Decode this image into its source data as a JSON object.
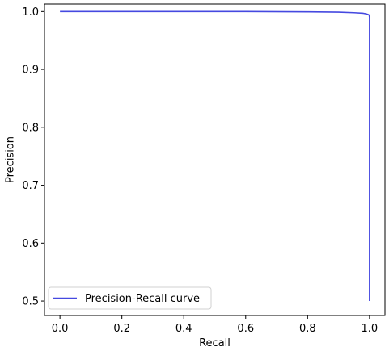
{
  "chart_data": {
    "type": "line",
    "title": "",
    "xlabel": "Recall",
    "ylabel": "Precision",
    "xlim": [
      -0.05,
      1.05
    ],
    "ylim": [
      0.475,
      1.013
    ],
    "xticks": [
      0.0,
      0.2,
      0.4,
      0.6,
      0.8,
      1.0
    ],
    "xtick_labels": [
      "0.0",
      "0.2",
      "0.4",
      "0.6",
      "0.8",
      "1.0"
    ],
    "yticks": [
      0.5,
      0.6,
      0.7,
      0.8,
      0.9,
      1.0
    ],
    "ytick_labels": [
      "0.5",
      "0.6",
      "0.7",
      "0.8",
      "0.9",
      "1.0"
    ],
    "grid": false,
    "legend_position": "lower-left",
    "series": [
      {
        "name": "Precision-Recall curve",
        "color": "#4549e0",
        "x": [
          0.0,
          0.2,
          0.4,
          0.6,
          0.8,
          0.9,
          0.95,
          0.98,
          0.99,
          0.995,
          0.999,
          1.0,
          1.0,
          1.0
        ],
        "y": [
          1.0,
          1.0,
          1.0,
          1.0,
          0.9995,
          0.999,
          0.998,
          0.997,
          0.996,
          0.995,
          0.994,
          0.99,
          0.8,
          0.5
        ]
      }
    ]
  }
}
